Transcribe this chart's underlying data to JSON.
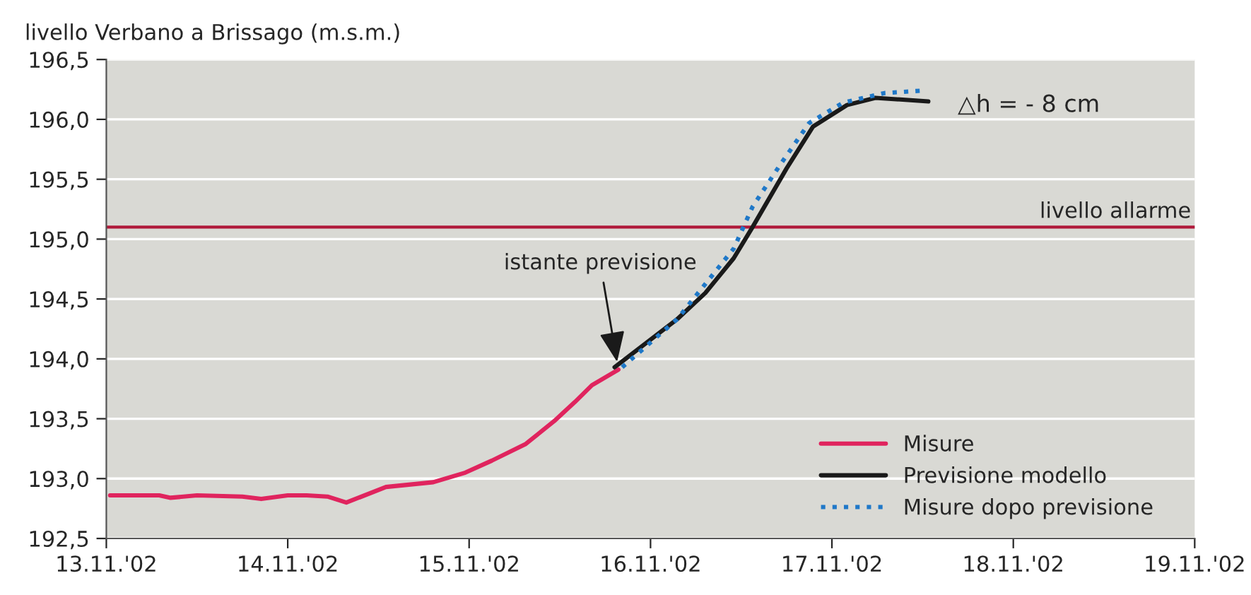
{
  "chart_data": {
    "type": "line",
    "title": "livello Verbano a Brissago (m.s.m.)",
    "xlim": [
      "2002-11-13",
      "2002-11-19"
    ],
    "xticks": [
      {
        "value": "2002-11-13",
        "label": "13.11.'02"
      },
      {
        "value": "2002-11-14",
        "label": "14.11.'02"
      },
      {
        "value": "2002-11-15",
        "label": "15.11.'02"
      },
      {
        "value": "2002-11-16",
        "label": "16.11.'02"
      },
      {
        "value": "2002-11-17",
        "label": "17.11.'02"
      },
      {
        "value": "2002-11-18",
        "label": "18.11.'02"
      },
      {
        "value": "2002-11-19",
        "label": "19.11.'02"
      }
    ],
    "ylim": [
      192.5,
      196.5
    ],
    "yticks": [
      {
        "value": 192.5,
        "label": "192,5"
      },
      {
        "value": 193.0,
        "label": "193,0"
      },
      {
        "value": 193.5,
        "label": "193,5"
      },
      {
        "value": 194.0,
        "label": "194,0"
      },
      {
        "value": 194.5,
        "label": "194,5"
      },
      {
        "value": 195.0,
        "label": "195,0"
      },
      {
        "value": 195.5,
        "label": "195,5"
      },
      {
        "value": 196.0,
        "label": "196,0"
      },
      {
        "value": 196.5,
        "label": "196,5"
      }
    ],
    "grid": "y",
    "legend": "bottom right",
    "series": [
      {
        "name": "Misure",
        "color": "#e0245e",
        "line_style": "solid",
        "x": [
          "2002-11-13T00:30",
          "2002-11-13T07:00",
          "2002-11-13T08:30",
          "2002-11-13T12:00",
          "2002-11-13T18:00",
          "2002-11-13T20:30",
          "2002-11-14T00:00",
          "2002-11-14T02:30",
          "2002-11-14T05:15",
          "2002-11-14T07:45",
          "2002-11-14T13:00",
          "2002-11-14T19:15",
          "2002-11-14T23:30",
          "2002-11-15T03:00",
          "2002-11-15T07:30",
          "2002-11-15T11:15",
          "2002-11-15T14:00",
          "2002-11-15T16:15",
          "2002-11-15T19:45"
        ],
        "values": [
          192.86,
          192.86,
          192.84,
          192.86,
          192.85,
          192.83,
          192.86,
          192.86,
          192.85,
          192.8,
          192.93,
          192.97,
          193.05,
          193.15,
          193.29,
          193.48,
          193.64,
          193.78,
          193.91
        ]
      },
      {
        "name": "Previsione modello",
        "color": "#1a1a1a",
        "line_style": "solid",
        "x": [
          "2002-11-15T19:15",
          "2002-11-16T03:30",
          "2002-11-16T07:15",
          "2002-11-16T11:00",
          "2002-11-16T13:30",
          "2002-11-16T18:00",
          "2002-11-16T21:30",
          "2002-11-17T02:00",
          "2002-11-17T05:45",
          "2002-11-17T12:45"
        ],
        "values": [
          193.93,
          194.33,
          194.55,
          194.84,
          195.1,
          195.59,
          195.94,
          196.12,
          196.18,
          196.15
        ]
      },
      {
        "name": "Misure dopo previsione",
        "color": "#1f78c8",
        "line_style": "dotted",
        "x": [
          "2002-11-15T20:15",
          "2002-11-16T03:30",
          "2002-11-16T11:00",
          "2002-11-16T13:30",
          "2002-11-16T17:15",
          "2002-11-16T21:00",
          "2002-11-17T01:30",
          "2002-11-17T07:00",
          "2002-11-17T12:00"
        ],
        "values": [
          193.93,
          194.33,
          194.92,
          195.27,
          195.63,
          195.97,
          196.14,
          196.22,
          196.24
        ]
      }
    ],
    "ref_lines": [
      {
        "axis": "y",
        "value": 195.1,
        "label": "livello allarme",
        "color": "#b0193a"
      }
    ],
    "annotations": [
      {
        "text": "istante previsione",
        "x": "2002-11-15T19:45",
        "y": 193.91
      },
      {
        "text": "△h = - 8 cm",
        "x": "2002-11-17T12:45",
        "y": 196.15
      }
    ]
  }
}
